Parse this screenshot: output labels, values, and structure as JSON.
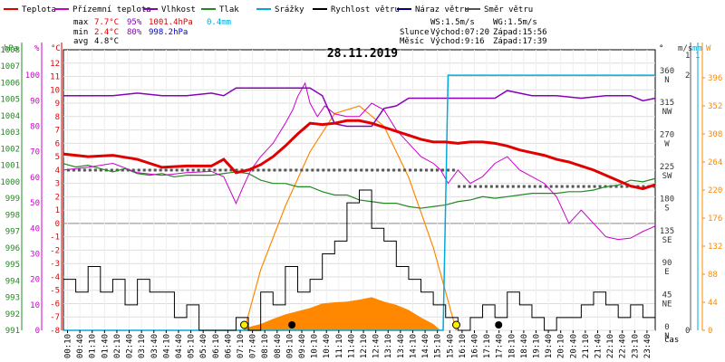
{
  "title": "28.11.2019",
  "legend": [
    {
      "label": "Teplota",
      "color": "#e00000"
    },
    {
      "label": "Přízemní teplota",
      "color": "#cc00cc"
    },
    {
      "label": "Vlhkost",
      "color": "#8800bb"
    },
    {
      "label": "Tlak",
      "color": "#228822"
    },
    {
      "label": "Srážky",
      "color": "#00aadd"
    },
    {
      "label": "Rychlost větru",
      "color": "#000000"
    },
    {
      "label": "Náraz větru",
      "color": "#000088"
    },
    {
      "label": "Směr větru",
      "color": "#555555"
    }
  ],
  "stats": {
    "max": {
      "label": "max",
      "temp": "7.7°C",
      "hum": "95%",
      "press": "1001.4hPa",
      "rain": "0.4mm"
    },
    "min": {
      "label": "min",
      "temp": "2.4°C",
      "hum": "80%",
      "press": "998.2hPa"
    },
    "avg": {
      "label": "avg",
      "temp": "4.8°C"
    }
  },
  "info": {
    "ws": "WS:1.5m/s",
    "wg": "WG:1.5m/s",
    "sun_label": "Slunce",
    "sunrise": "Východ:07:20",
    "sunset": "Západ:15:56",
    "moon_label": "Měsíc",
    "moonrise": "Východ:9:16",
    "moonset": "Západ:17:39"
  },
  "axes": {
    "hpa": {
      "unit": "hPa",
      "min": 991,
      "max": 1008,
      "ticks": [
        991,
        992,
        993,
        994,
        995,
        996,
        997,
        998,
        999,
        1000,
        1001,
        1002,
        1003,
        1004,
        1005,
        1006,
        1007,
        1008
      ]
    },
    "percent": {
      "unit": "%",
      "min": 0,
      "max": 110,
      "ticks": [
        0,
        10,
        20,
        30,
        40,
        50,
        60,
        70,
        80,
        90,
        100
      ]
    },
    "celsius": {
      "unit": "°C",
      "min": -8,
      "max": 13,
      "ticks": [
        -8,
        -7,
        -6,
        -5,
        -4,
        -3,
        -2,
        -1,
        0,
        1,
        2,
        3,
        4,
        5,
        6,
        7,
        8,
        9,
        10,
        11,
        12
      ]
    },
    "direction": {
      "unit": "°",
      "min": 0,
      "max": 394,
      "ticks": [
        {
          "v": 0,
          "label": "0"
        },
        {
          "v": 45,
          "label": "45"
        },
        {
          "v": 90,
          "label": "90"
        },
        {
          "v": 135,
          "label": "135"
        },
        {
          "v": 180,
          "label": "180"
        },
        {
          "v": 225,
          "label": "225"
        },
        {
          "v": 270,
          "label": "270"
        },
        {
          "v": 315,
          "label": "315"
        },
        {
          "v": 360,
          "label": "360"
        }
      ],
      "compass": [
        {
          "v": 0,
          "label": "N"
        },
        {
          "v": 45,
          "label": "NE"
        },
        {
          "v": 90,
          "label": "E"
        },
        {
          "v": 135,
          "label": "SE"
        },
        {
          "v": 180,
          "label": "S"
        },
        {
          "v": 225,
          "label": "SW"
        },
        {
          "v": 270,
          "label": "W"
        },
        {
          "v": 315,
          "label": "NW"
        },
        {
          "v": 360,
          "label": "N"
        }
      ]
    },
    "wind": {
      "unit": "m/s",
      "min": 0,
      "max": 2.2,
      "ticks": [
        0,
        2
      ],
      "tick_top": 1
    },
    "rain_mm": {
      "unit": "mm",
      "ticks": [
        0,
        1
      ]
    },
    "solar": {
      "unit": "W",
      "min": 0,
      "max": 440,
      "ticks": [
        0,
        44,
        88,
        132,
        176,
        220,
        264,
        308,
        352,
        396
      ]
    },
    "time_label": "čas",
    "time_ticks": [
      "00:10",
      "00:40",
      "01:10",
      "01:40",
      "02:10",
      "02:40",
      "03:10",
      "03:40",
      "04:10",
      "04:40",
      "05:10",
      "05:40",
      "06:10",
      "06:40",
      "07:10",
      "07:40",
      "08:10",
      "08:40",
      "09:10",
      "09:40",
      "10:10",
      "10:40",
      "11:10",
      "11:40",
      "12:10",
      "12:40",
      "13:10",
      "13:40",
      "14:10",
      "14:40",
      "15:10",
      "15:40",
      "16:10",
      "16:40",
      "17:10",
      "17:40",
      "18:10",
      "18:40",
      "19:10",
      "19:40",
      "20:10",
      "20:40",
      "21:10",
      "21:40",
      "22:10",
      "22:40",
      "23:10",
      "23:40"
    ]
  },
  "chart_data": {
    "type": "line",
    "title": "28.11.2019",
    "x_unit": "hours",
    "x_range": [
      0,
      24
    ],
    "series": [
      {
        "name": "Teplota",
        "unit": "°C",
        "color": "#e00000",
        "x": [
          0,
          1,
          2,
          3,
          4,
          5,
          6,
          6.5,
          7,
          7.5,
          8,
          8.5,
          9,
          9.5,
          10,
          10.5,
          11,
          11.5,
          12,
          12.5,
          13,
          13.5,
          14,
          14.5,
          15,
          15.5,
          16,
          16.5,
          17,
          17.5,
          18,
          18.5,
          19,
          19.5,
          20,
          20.5,
          21,
          21.5,
          22,
          22.5,
          23,
          23.5,
          24
        ],
        "y": [
          5.2,
          5.0,
          5.1,
          4.8,
          4.2,
          4.3,
          4.3,
          4.8,
          3.8,
          4.0,
          4.4,
          5.0,
          5.8,
          6.7,
          7.5,
          7.4,
          7.5,
          7.7,
          7.7,
          7.5,
          7.2,
          6.9,
          6.6,
          6.3,
          6.1,
          6.1,
          6.0,
          6.1,
          6.1,
          6.0,
          5.8,
          5.5,
          5.3,
          5.1,
          4.8,
          4.6,
          4.3,
          4.0,
          3.6,
          3.2,
          2.8,
          2.6,
          2.9
        ]
      },
      {
        "name": "Přízemní teplota",
        "unit": "°C",
        "color": "#cc00cc",
        "x": [
          0,
          1,
          2,
          3,
          4,
          5,
          6,
          6.5,
          7,
          7.3,
          7.6,
          8,
          8.5,
          9,
          9.3,
          9.5,
          9.8,
          10,
          10.3,
          10.6,
          11,
          11.5,
          12,
          12.5,
          13,
          13.5,
          14,
          14.5,
          15,
          15.3,
          15.6,
          16,
          16.5,
          17,
          17.5,
          18,
          18.5,
          19,
          19.5,
          20,
          20.5,
          21,
          21.5,
          22,
          22.5,
          23,
          23.5,
          24
        ],
        "y": [
          4.0,
          4.2,
          4.5,
          3.8,
          3.6,
          3.8,
          3.9,
          3.5,
          1.5,
          2.8,
          4.0,
          5.0,
          6.0,
          7.5,
          8.5,
          9.5,
          10.5,
          9.0,
          8.0,
          8.8,
          8.2,
          8.0,
          8.0,
          9.0,
          8.5,
          7.0,
          6.0,
          5.0,
          4.5,
          4.0,
          3.0,
          4.0,
          3.0,
          3.5,
          4.5,
          5.0,
          4.0,
          3.5,
          3.0,
          2.0,
          0.0,
          1.0,
          0.0,
          -1.0,
          -1.2,
          -1.1,
          -0.6,
          -0.2
        ]
      },
      {
        "name": "Vlhkost",
        "unit": "%",
        "color": "#8800bb",
        "x": [
          0,
          1,
          2,
          3,
          4,
          5,
          6,
          6.5,
          7,
          8,
          9,
          9.5,
          10,
          10.5,
          11,
          11.5,
          12,
          12.5,
          13,
          13.5,
          14,
          15,
          16,
          17,
          17.5,
          18,
          19,
          20,
          21,
          22,
          23,
          23.5,
          24
        ],
        "y": [
          92,
          92,
          92,
          93,
          92,
          92,
          93,
          92,
          95,
          95,
          95,
          95,
          95,
          92,
          81,
          80,
          80,
          80,
          87,
          88,
          91,
          91,
          91,
          91,
          91,
          94,
          92,
          92,
          91,
          92,
          92,
          90,
          91
        ]
      },
      {
        "name": "Tlak",
        "unit": "hPa",
        "color": "#228822",
        "x": [
          0,
          0.5,
          1,
          1.5,
          2,
          2.5,
          3,
          3.5,
          4,
          4.5,
          5,
          5.5,
          6,
          6.5,
          7,
          7.5,
          8,
          8.5,
          9,
          9.5,
          10,
          10.5,
          11,
          11.5,
          12,
          12.5,
          13,
          13.5,
          14,
          14.5,
          15,
          15.5,
          16,
          16.5,
          17,
          17.5,
          18,
          18.5,
          19,
          19.5,
          20,
          20.5,
          21,
          21.5,
          22,
          22.5,
          23,
          23.5,
          24
        ],
        "y": [
          1001.1,
          1000.9,
          1001.0,
          1000.8,
          1000.6,
          1000.8,
          1000.5,
          1000.4,
          1000.5,
          1000.3,
          1000.4,
          1000.4,
          1000.4,
          1000.5,
          1000.6,
          1000.5,
          1000.1,
          999.9,
          999.9,
          999.7,
          999.7,
          999.4,
          999.2,
          999.2,
          998.9,
          998.8,
          998.7,
          998.7,
          998.5,
          998.4,
          998.5,
          998.6,
          998.8,
          998.9,
          999.1,
          999.0,
          999.1,
          999.2,
          999.3,
          999.3,
          999.3,
          999.4,
          999.4,
          999.5,
          999.7,
          999.8,
          1000.1,
          1000.0,
          1000.2
        ]
      },
      {
        "name": "Srážky",
        "unit": "mm",
        "color": "#00aadd",
        "x": [
          0,
          15.4,
          15.6,
          16,
          24
        ],
        "y": [
          0,
          0,
          0.4,
          0.4,
          0.4
        ]
      },
      {
        "name": "Rychlost větru",
        "unit": "m/s",
        "color": "#000000",
        "x": [
          0,
          0.5,
          1,
          1.5,
          2,
          2.5,
          3,
          3.5,
          4,
          4.5,
          5,
          5.5,
          6,
          6.5,
          7,
          7.5,
          8,
          8.5,
          9,
          9.5,
          10,
          10.5,
          11,
          11.5,
          12,
          12.5,
          13,
          13.5,
          14,
          14.5,
          15,
          15.5,
          16,
          16.5,
          17,
          17.5,
          18,
          18.5,
          19,
          19.5,
          20,
          20.5,
          21,
          21.5,
          22,
          22.5,
          23,
          23.5,
          24
        ],
        "y": [
          0.4,
          0.3,
          0.5,
          0.3,
          0.4,
          0.2,
          0.4,
          0.3,
          0.3,
          0.1,
          0.2,
          0.0,
          0.0,
          0.0,
          0.1,
          0.0,
          0.3,
          0.2,
          0.5,
          0.3,
          0.4,
          0.6,
          0.7,
          1.0,
          1.1,
          0.8,
          0.7,
          0.5,
          0.4,
          0.3,
          0.2,
          0.1,
          0.0,
          0.1,
          0.2,
          0.1,
          0.3,
          0.2,
          0.1,
          0.0,
          0.1,
          0.1,
          0.2,
          0.3,
          0.2,
          0.1,
          0.2,
          0.1,
          0.8
        ]
      },
      {
        "name": "Náraz větru",
        "unit": "m/s",
        "color": "#000088",
        "x": [
          0,
          24
        ],
        "y": [
          0,
          0
        ]
      },
      {
        "name": "Směr větru",
        "unit": "°",
        "color": "#555555",
        "x": [
          0,
          1,
          2,
          3,
          4,
          5,
          6,
          7,
          8,
          9,
          10,
          11,
          12,
          13,
          14,
          15,
          16,
          17,
          18,
          19,
          20,
          21,
          22,
          23,
          24
        ],
        "y": [
          225,
          225,
          225,
          225,
          225,
          225,
          225,
          225,
          225,
          225,
          225,
          225,
          225,
          225,
          225,
          225,
          202,
          202,
          202,
          202,
          202,
          202,
          202,
          202,
          202
        ]
      }
    ],
    "solar_radiation": {
      "name": "Sluneční záření",
      "unit": "W",
      "x": [
        7.2,
        7.5,
        8,
        8.5,
        9,
        9.5,
        10,
        10.5,
        11,
        11.5,
        12,
        12.5,
        13,
        13.5,
        14,
        14.5,
        15,
        15.3
      ],
      "y": [
        0,
        5,
        10,
        18,
        25,
        30,
        35,
        42,
        44,
        45,
        48,
        52,
        45,
        40,
        32,
        20,
        10,
        0
      ]
    },
    "solar_theoretical": {
      "x": [
        7.33,
        8,
        9,
        10,
        11,
        12,
        13,
        14,
        15,
        15.93
      ],
      "y": [
        0,
        95,
        195,
        280,
        340,
        352,
        320,
        240,
        130,
        0
      ]
    },
    "grid": true
  }
}
